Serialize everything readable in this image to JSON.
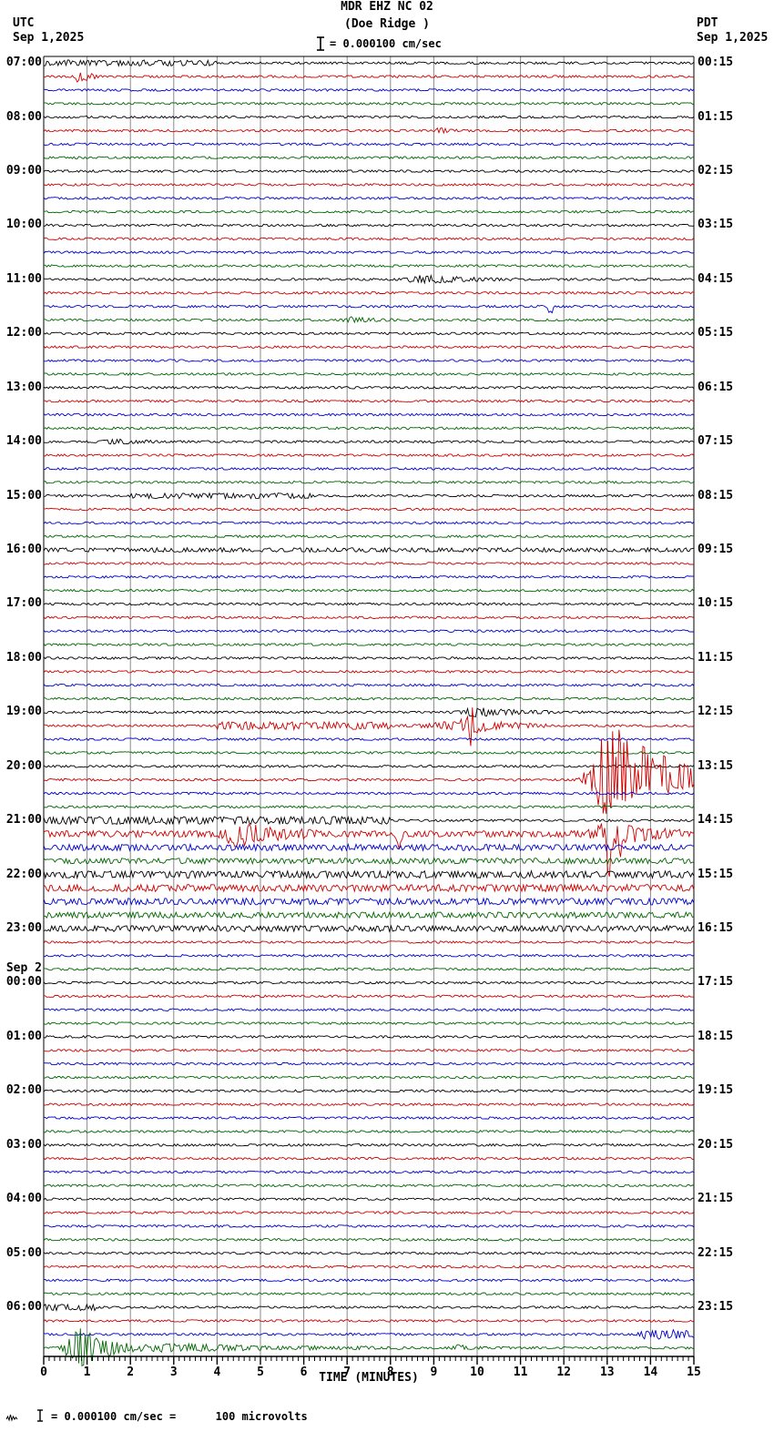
{
  "header": {
    "title_line1": "MDR EHZ NC 02",
    "title_line2": "(Doe Ridge )",
    "scale_label": "= 0.000100 cm/sec",
    "left_tz": "UTC",
    "left_date": "Sep 1,2025",
    "right_tz": "PDT",
    "right_date": "Sep 1,2025"
  },
  "plot": {
    "left_labels": [
      "07:00",
      "08:00",
      "09:00",
      "10:00",
      "11:00",
      "12:00",
      "13:00",
      "14:00",
      "15:00",
      "16:00",
      "17:00",
      "18:00",
      "19:00",
      "20:00",
      "21:00",
      "22:00",
      "23:00",
      "00:00",
      "01:00",
      "02:00",
      "03:00",
      "04:00",
      "05:00",
      "06:00"
    ],
    "day2_label": "Sep 2",
    "day2_index": 17,
    "right_labels": [
      "00:15",
      "01:15",
      "02:15",
      "03:15",
      "04:15",
      "05:15",
      "06:15",
      "07:15",
      "08:15",
      "09:15",
      "10:15",
      "11:15",
      "12:15",
      "13:15",
      "14:15",
      "15:15",
      "16:15",
      "17:15",
      "18:15",
      "19:15",
      "20:15",
      "21:15",
      "22:15",
      "23:15"
    ],
    "x_ticks": [
      "0",
      "1",
      "2",
      "3",
      "4",
      "5",
      "6",
      "7",
      "8",
      "9",
      "10",
      "11",
      "12",
      "13",
      "14",
      "15"
    ],
    "x_axis_title": "TIME (MINUTES)"
  },
  "footer": {
    "note_left": "= 0.000100 cm/sec =",
    "note_right": "100 microvolts"
  },
  "chart_data": {
    "type": "line",
    "subtype": "helicorder-seismogram",
    "station": "MDR EHZ NC 02",
    "station_name": "Doe Ridge",
    "timezone_left": "UTC",
    "timezone_right": "PDT",
    "start": "2025-09-01 07:00 UTC",
    "end": "2025-09-02 07:00 UTC",
    "minutes_per_trace": 15,
    "traces_per_hour": 4,
    "rows": 96,
    "scale": "0.000100 cm/sec = 100 microvolts",
    "trace_colors": [
      "#000000",
      "#cc0000",
      "#0000cc",
      "#006600"
    ],
    "grid_color": "#8a8a8a",
    "border_color": "#000000",
    "x_range_minutes": [
      0,
      15
    ],
    "base_noise_amp": 1.25,
    "events": [
      {
        "row": 0,
        "utc": "07:00",
        "shape": "flat",
        "start": 0,
        "end": 4,
        "amp": 2,
        "note": "slightly elevated noise"
      },
      {
        "row": 1,
        "utc": "07:15",
        "shape": "burst",
        "start": 0.55,
        "end": 1.35,
        "amp": 7,
        "peak": 0.8,
        "note": "small local event (red)"
      },
      {
        "row": 5,
        "utc": "08:15",
        "shape": "burst",
        "start": 8.9,
        "end": 9.7,
        "amp": 2.5,
        "peak": 9.1
      },
      {
        "row": 16,
        "utc": "11:00",
        "shape": "burst",
        "start": 8.2,
        "end": 10.9,
        "amp": 4.5,
        "peak": 8.6,
        "note": "teleseism fuzz"
      },
      {
        "row": 18,
        "utc": "11:30",
        "spike": 11.68,
        "amp": 13,
        "dir": -1,
        "note": "sharp blue spike"
      },
      {
        "row": 19,
        "utc": "11:45",
        "shape": "burst",
        "start": 6.7,
        "end": 8.1,
        "amp": 2.6,
        "peak": 7.1
      },
      {
        "row": 28,
        "utc": "14:00",
        "shape": "burst",
        "start": 1.2,
        "end": 2.7,
        "amp": 2.5,
        "peak": 1.6
      },
      {
        "row": 32,
        "utc": "15:00",
        "shape": "flat",
        "start": 2.0,
        "end": 6.2,
        "amp": 1.8
      },
      {
        "row": 36,
        "utc": "16:00",
        "shape": "flat",
        "start": 0,
        "end": 15,
        "amp": 1.1
      },
      {
        "row": 48,
        "utc": "19:00",
        "shape": "burst",
        "start": 9.4,
        "end": 11.8,
        "amp": 5,
        "peak": 9.9,
        "note": "event fuzz"
      },
      {
        "row": 49,
        "utc": "19:15",
        "shape": "flat",
        "start": 4.0,
        "end": 8.0,
        "amp": 3
      },
      {
        "row": 49,
        "utc": "19:15",
        "shape": "burst",
        "start": 8.0,
        "end": 11.6,
        "amp": 8,
        "peak": 9.9
      },
      {
        "row": 49,
        "utc": "19:15",
        "spike": 9.85,
        "amp": 28,
        "dir": -1
      },
      {
        "row": 53,
        "utc": "20:15",
        "shape": "burst",
        "start": 12.25,
        "end": 15,
        "amp": 78,
        "peak": 12.95,
        "biasDown": 0.6,
        "note": "large local earthquake, trace overlaps neighbors"
      },
      {
        "row": 53,
        "utc": "20:15",
        "shape": "flat",
        "start": 13.8,
        "end": 15,
        "amp": 9,
        "note": "coda"
      },
      {
        "row": 56,
        "utc": "21:00",
        "shape": "flat",
        "start": 0,
        "end": 8,
        "amp": 3
      },
      {
        "row": 57,
        "utc": "21:15",
        "shape": "flat",
        "start": 0,
        "end": 15,
        "amp": 2.2
      },
      {
        "row": 57,
        "utc": "21:15",
        "shape": "burst",
        "start": 3.9,
        "end": 6.3,
        "amp": 13,
        "peak": 4.4,
        "note": "aftershock"
      },
      {
        "row": 57,
        "utc": "21:15",
        "spike": 8.2,
        "amp": 20,
        "dir": -1
      },
      {
        "row": 57,
        "utc": "21:15",
        "shape": "burst",
        "start": 12.35,
        "end": 14.8,
        "amp": 13,
        "peak": 13.0,
        "note": "aftershock"
      },
      {
        "row": 57,
        "utc": "21:15",
        "spike": 13.05,
        "amp": 42,
        "dir": -1
      },
      {
        "row": 57,
        "utc": "21:15",
        "spike": 13.3,
        "amp": 26,
        "dir": -1
      },
      {
        "row": 58,
        "utc": "21:30",
        "shape": "flat",
        "start": 0,
        "end": 15,
        "amp": 2.2
      },
      {
        "row": 59,
        "utc": "21:45",
        "shape": "flat",
        "start": 0,
        "end": 15,
        "amp": 1.8
      },
      {
        "row": 60,
        "utc": "22:00",
        "shape": "flat",
        "start": 0,
        "end": 15,
        "amp": 2.6
      },
      {
        "row": 61,
        "utc": "22:15",
        "shape": "flat",
        "start": 0,
        "end": 15,
        "amp": 2.6
      },
      {
        "row": 62,
        "utc": "22:30",
        "shape": "flat",
        "start": 0,
        "end": 15,
        "amp": 2.3
      },
      {
        "row": 63,
        "utc": "22:45",
        "shape": "flat",
        "start": 0,
        "end": 15,
        "amp": 2.0
      },
      {
        "row": 64,
        "utc": "23:00",
        "shape": "flat",
        "start": 0,
        "end": 15,
        "amp": 2.0
      },
      {
        "row": 92,
        "utc": "06:00",
        "shape": "flat",
        "start": 0,
        "end": 1.2,
        "amp": 2.5
      },
      {
        "row": 94,
        "utc": "06:30",
        "shape": "flat",
        "start": 13.7,
        "end": 15,
        "amp": 4,
        "note": "elevated blue noise at end"
      },
      {
        "row": 95,
        "utc": "06:45",
        "shape": "burst",
        "start": 0.15,
        "end": 2.4,
        "amp": 22,
        "peak": 0.8,
        "note": "large local event (green)"
      },
      {
        "row": 95,
        "utc": "06:45",
        "shape": "burst",
        "start": 2.4,
        "end": 8.5,
        "amp": 4.5,
        "peak": 2.5,
        "note": "coda"
      },
      {
        "row": 95,
        "utc": "06:45",
        "shape": "burst",
        "start": 9.3,
        "end": 10.2,
        "amp": 3,
        "peak": 9.5
      }
    ]
  }
}
